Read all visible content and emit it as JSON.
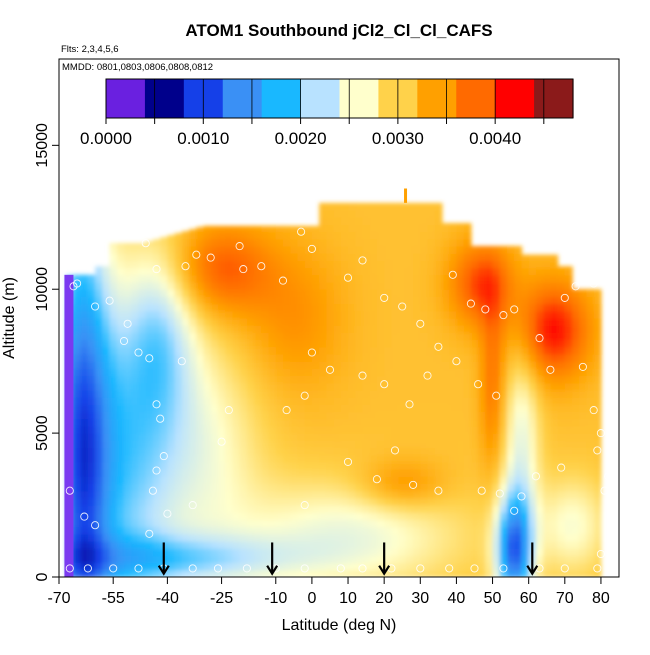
{
  "chart_data": {
    "type": "heatmap",
    "title": "ATOM1 Southbound jCl2_Cl_Cl_CAFS",
    "flights_note": "Flts: 2,3,4,5,6",
    "dates_note": "MMDD: 0801,0803,0806,0808,0812",
    "xlabel": "Latitude (deg N)",
    "ylabel": "Altitude (m)",
    "xlim": [
      -70,
      85
    ],
    "ylim": [
      0,
      18000
    ],
    "x_ticks": [
      -70,
      -55,
      -40,
      -25,
      -10,
      0,
      10,
      20,
      30,
      40,
      50,
      60,
      70,
      80
    ],
    "x_tick_labels": [
      "-70",
      "-55",
      "-40",
      "-25",
      "-10",
      "0",
      "10",
      "20",
      "30",
      "40",
      "50",
      "60",
      "70",
      "80"
    ],
    "y_ticks": [
      0,
      5000,
      10000,
      15000
    ],
    "y_tick_labels": [
      "0",
      "5000",
      "10000",
      "15000"
    ],
    "colorbar": {
      "min": 0.0,
      "max": 0.0048,
      "breaks": [
        0.0,
        0.0005,
        0.001,
        0.0015,
        0.002,
        0.0025,
        0.003,
        0.0035,
        0.004,
        0.0045
      ],
      "tick_values": [
        0.0,
        0.001,
        0.002,
        0.003,
        0.004
      ],
      "tick_labels": [
        "0.0000",
        "0.0010",
        "0.0020",
        "0.0030",
        "0.0040"
      ],
      "colors": [
        "#6a20e0",
        "#00008b",
        "#1540e8",
        "#3a90f5",
        "#19b8ff",
        "#b8e2ff",
        "#ffffcc",
        "#ffd24a",
        "#ffa000",
        "#ff6a00",
        "#ff0000",
        "#8b1a1a"
      ]
    },
    "surface_markers_lat": [
      -41,
      -11,
      20,
      61
    ],
    "sample_points": [
      [
        -66,
        10100
      ],
      [
        -65,
        10200
      ],
      [
        -60,
        9400
      ],
      [
        -56,
        9600
      ],
      [
        -51,
        8800
      ],
      [
        -52,
        8200
      ],
      [
        -48,
        7800
      ],
      [
        -45,
        7600
      ],
      [
        -43,
        6000
      ],
      [
        -42,
        5500
      ],
      [
        -41,
        4200
      ],
      [
        -43,
        3700
      ],
      [
        -44,
        3000
      ],
      [
        -40,
        2200
      ],
      [
        -33,
        2500
      ],
      [
        -46,
        11600
      ],
      [
        -43,
        10700
      ],
      [
        -35,
        10800
      ],
      [
        -32,
        11200
      ],
      [
        -28,
        11100
      ],
      [
        -20,
        11500
      ],
      [
        -19,
        10700
      ],
      [
        -14,
        10800
      ],
      [
        -8,
        10300
      ],
      [
        -3,
        12000
      ],
      [
        0,
        11400
      ],
      [
        10,
        10400
      ],
      [
        14,
        11000
      ],
      [
        20,
        9700
      ],
      [
        25,
        9400
      ],
      [
        30,
        8800
      ],
      [
        35,
        8000
      ],
      [
        39,
        10500
      ],
      [
        44,
        9500
      ],
      [
        48,
        9300
      ],
      [
        53,
        9100
      ],
      [
        56,
        9300
      ],
      [
        63,
        8300
      ],
      [
        66,
        7200
      ],
      [
        70,
        9700
      ],
      [
        73,
        10100
      ],
      [
        78,
        10200
      ],
      [
        75,
        7300
      ],
      [
        78,
        5800
      ],
      [
        79,
        4400
      ],
      [
        80,
        5000
      ],
      [
        82,
        3500
      ],
      [
        81,
        3000
      ],
      [
        83,
        2000
      ],
      [
        80,
        800
      ],
      [
        79,
        300
      ],
      [
        70,
        300
      ],
      [
        63,
        300
      ],
      [
        53,
        300
      ],
      [
        45,
        300
      ],
      [
        38,
        300
      ],
      [
        30,
        300
      ],
      [
        22,
        300
      ],
      [
        14,
        300
      ],
      [
        8,
        300
      ],
      [
        -2,
        300
      ],
      [
        -10,
        300
      ],
      [
        -18,
        300
      ],
      [
        -26,
        300
      ],
      [
        -33,
        300
      ],
      [
        -41,
        300
      ],
      [
        -48,
        300
      ],
      [
        -55,
        300
      ],
      [
        -62,
        300
      ],
      [
        -67,
        300
      ],
      [
        -67,
        3000
      ],
      [
        -63,
        2100
      ],
      [
        -60,
        1800
      ],
      [
        -45,
        1500
      ],
      [
        -36,
        7500
      ],
      [
        -23,
        5800
      ],
      [
        -7,
        5800
      ],
      [
        0,
        7800
      ],
      [
        -2,
        6300
      ],
      [
        5,
        7200
      ],
      [
        14,
        7000
      ],
      [
        20,
        6700
      ],
      [
        27,
        6000
      ],
      [
        32,
        7000
      ],
      [
        40,
        7500
      ],
      [
        46,
        6700
      ],
      [
        51,
        6300
      ],
      [
        47,
        3000
      ],
      [
        52,
        2900
      ],
      [
        56,
        2300
      ],
      [
        58,
        2800
      ],
      [
        62,
        3500
      ],
      [
        69,
        3800
      ],
      [
        10,
        4000
      ],
      [
        18,
        3400
      ],
      [
        23,
        4400
      ],
      [
        28,
        3200
      ],
      [
        35,
        3000
      ],
      [
        -25,
        4700
      ],
      [
        -2,
        2500
      ]
    ]
  }
}
